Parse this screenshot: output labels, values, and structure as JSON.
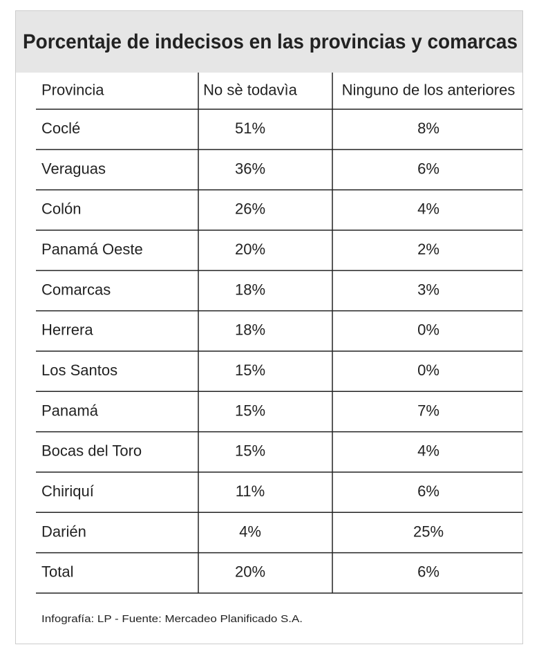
{
  "title": "Porcentaje de indecisos en las provincias y comarcas",
  "table": {
    "header": [
      "Provincia",
      "No sè todavìa",
      "Ninguno de los anteriores"
    ],
    "rows": [
      [
        "Coclé",
        "51%",
        "8%"
      ],
      [
        "Veraguas",
        "36%",
        "6%"
      ],
      [
        "Colón",
        "26%",
        "4%"
      ],
      [
        "Panamá Oeste",
        "20%",
        "2%"
      ],
      [
        "Comarcas",
        "18%",
        "3%"
      ],
      [
        "Herrera",
        "18%",
        "0%"
      ],
      [
        "Los Santos",
        "15%",
        "0%"
      ],
      [
        "Panamá",
        "15%",
        "7%"
      ],
      [
        "Bocas del Toro",
        "15%",
        "4%"
      ],
      [
        "Chiriquí",
        "11%",
        "6%"
      ],
      [
        "Darién",
        "4%",
        "25%"
      ],
      [
        "Total",
        "20%",
        "6%"
      ]
    ]
  },
  "footer": "Infografía: LP - Fuente: Mercadeo Planificado S.A."
}
